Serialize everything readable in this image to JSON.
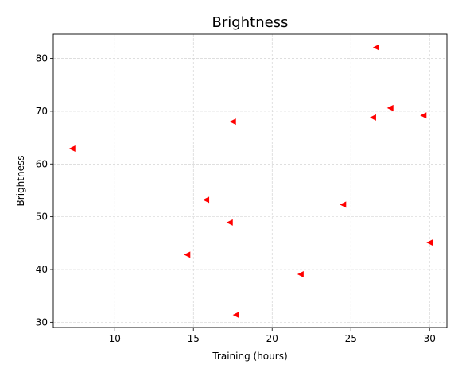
{
  "chart_data": {
    "type": "scatter",
    "title": "Brightness",
    "xlabel": "Training (hours)",
    "ylabel": "Brightness",
    "xlim": [
      6.1,
      31.1
    ],
    "ylim": [
      29.0,
      84.6
    ],
    "xticks": [
      10,
      15,
      20,
      25,
      30
    ],
    "yticks": [
      30,
      40,
      50,
      60,
      70,
      80
    ],
    "grid": true,
    "marker": "triangle-left",
    "marker_color": "#ff0000",
    "points": [
      {
        "x": 7.3,
        "y": 62.9
      },
      {
        "x": 14.6,
        "y": 42.8
      },
      {
        "x": 15.8,
        "y": 53.2
      },
      {
        "x": 17.3,
        "y": 48.9
      },
      {
        "x": 17.5,
        "y": 68.0
      },
      {
        "x": 17.7,
        "y": 31.4
      },
      {
        "x": 21.8,
        "y": 39.1
      },
      {
        "x": 24.5,
        "y": 52.3
      },
      {
        "x": 26.4,
        "y": 68.8
      },
      {
        "x": 26.6,
        "y": 82.1
      },
      {
        "x": 27.5,
        "y": 70.6
      },
      {
        "x": 29.6,
        "y": 69.2
      },
      {
        "x": 30.0,
        "y": 45.1
      }
    ]
  }
}
